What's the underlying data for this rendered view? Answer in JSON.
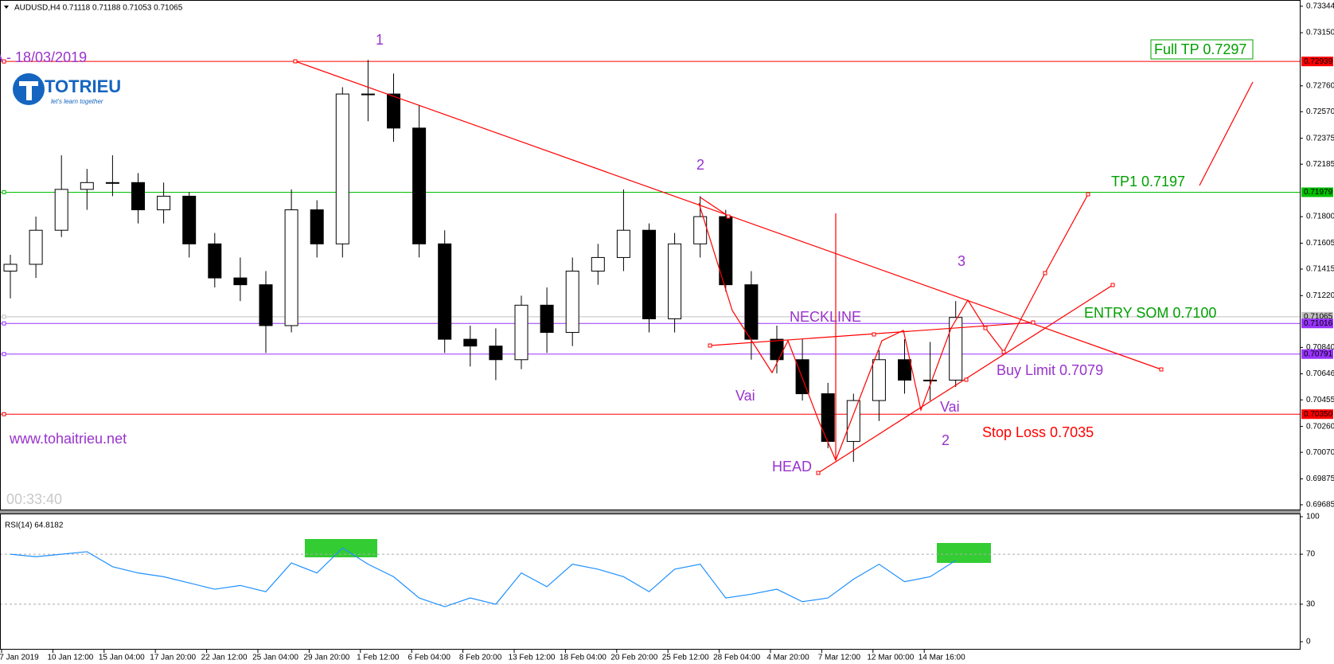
{
  "chart_data": [
    {
      "type": "candlestick",
      "title": "AUDUSD,H4 0.71118 0.71188 0.71053 0.71065",
      "xtick_labels": [
        "7 Jan 2019",
        "10 Jan 12:00",
        "15 Jan 04:00",
        "17 Jan 20:00",
        "22 Jan 12:00",
        "25 Jan 04:00",
        "29 Jan 20:00",
        "1 Feb 12:00",
        "6 Feb 04:00",
        "8 Feb 20:00",
        "13 Feb 12:00",
        "18 Feb 04:00",
        "20 Feb 20:00",
        "25 Feb 12:00",
        "28 Feb 04:00",
        "4 Mar 20:00",
        "7 Mar 12:00",
        "12 Mar 00:00",
        "14 Mar 16:00"
      ],
      "open": [
        0.714,
        0.7145,
        0.717,
        0.72,
        0.7205,
        0.7205,
        0.7185,
        0.7195,
        0.716,
        0.7135,
        0.713,
        0.71,
        0.7185,
        0.716,
        0.727,
        0.727,
        0.7245,
        0.716,
        0.709,
        0.7085,
        0.7075,
        0.7115,
        0.7095,
        0.714,
        0.715,
        0.717,
        0.7105,
        0.716,
        0.718,
        0.713,
        0.709,
        0.7075,
        0.705,
        0.7015,
        0.7045,
        0.7075,
        0.706,
        0.706
      ],
      "high": [
        0.7152,
        0.718,
        0.7225,
        0.7215,
        0.7225,
        0.7212,
        0.7205,
        0.7198,
        0.7168,
        0.715,
        0.714,
        0.72,
        0.7192,
        0.7275,
        0.7295,
        0.7285,
        0.7262,
        0.717,
        0.71,
        0.7098,
        0.7122,
        0.7128,
        0.715,
        0.716,
        0.72,
        0.7175,
        0.7168,
        0.7195,
        0.7185,
        0.714,
        0.71,
        0.709,
        0.7058,
        0.705,
        0.7082,
        0.709,
        0.7088,
        0.7118
      ],
      "low": [
        0.712,
        0.7135,
        0.7165,
        0.7185,
        0.7195,
        0.7175,
        0.7175,
        0.715,
        0.7128,
        0.7118,
        0.708,
        0.7095,
        0.715,
        0.715,
        0.725,
        0.7235,
        0.715,
        0.708,
        0.707,
        0.706,
        0.7068,
        0.708,
        0.7085,
        0.713,
        0.714,
        0.7095,
        0.7095,
        0.715,
        0.7125,
        0.7075,
        0.7065,
        0.7045,
        0.701,
        0.7,
        0.703,
        0.705,
        0.7045,
        0.7055
      ],
      "close": [
        0.7145,
        0.717,
        0.72,
        0.7205,
        0.7205,
        0.7185,
        0.7195,
        0.716,
        0.7135,
        0.713,
        0.71,
        0.7185,
        0.716,
        0.727,
        0.727,
        0.7245,
        0.716,
        0.709,
        0.7085,
        0.7075,
        0.7115,
        0.7095,
        0.714,
        0.715,
        0.717,
        0.7105,
        0.716,
        0.718,
        0.713,
        0.709,
        0.7075,
        0.705,
        0.7015,
        0.7045,
        0.7075,
        0.706,
        0.706,
        0.7106
      ],
      "ylim": [
        0.6965,
        0.7339
      ],
      "yticks": [
        0.73344,
        {
          "value": 0.7315,
          "label": "0.73150"
        },
        {
          "value": 0.7276,
          "label": "0.72760"
        },
        {
          "value": 0.7257,
          "label": "0.72570"
        },
        0.72375,
        0.72185,
        {
          "value": 0.718,
          "label": "0.71800"
        },
        0.71605,
        0.71415,
        {
          "value": 0.7122,
          "label": "0.71220"
        },
        {
          "value": 0.7084,
          "label": "0.70840"
        },
        0.70646,
        0.70455,
        {
          "value": 0.7026,
          "label": "0.70260"
        },
        {
          "value": 0.7007,
          "label": "0.70070"
        },
        0.69875,
        0.69685
      ],
      "levels": [
        {
          "value": 0.72939,
          "label": "0.72939",
          "color": "#ff0000"
        },
        {
          "value": 0.71979,
          "label": "0.71979",
          "color": "#00c000"
        },
        {
          "value": 0.71065,
          "label": "0.71065",
          "color": "#c0c0c0"
        },
        {
          "value": 0.71016,
          "label": "0.71016",
          "color": "#9933ff"
        },
        {
          "value": 0.70791,
          "label": "0.70791",
          "color": "#9933ff"
        },
        {
          "value": 0.7035,
          "label": "0.70350",
          "color": "#ff0000"
        }
      ],
      "annotations": {
        "wave_1": "1",
        "wave_2": "2",
        "wave_3": "3",
        "wave_2b": "2",
        "date": "A - 18/03/2019",
        "brand": "TOTRIEU",
        "slogan": "let's learn together",
        "full_tp": "Full TP 0.7297",
        "tp1": "TP1 0.7197",
        "neckline": "NECKLINE",
        "entry": "ENTRY SOM 0.7100",
        "buy_limit": "Buy Limit 0.7079",
        "left_shoulder": "Vai",
        "right_shoulder": "Vai",
        "head": "HEAD",
        "stop_loss": "Stop Loss 0.7035",
        "website": "www.tohaitrieu.net",
        "timer": "00:33:40"
      }
    },
    {
      "type": "line",
      "title": "RSI(14) 64.8182",
      "color": "#1e90ff",
      "values": [
        70,
        68,
        70,
        72,
        60,
        55,
        52,
        47,
        42,
        45,
        40,
        63,
        55,
        75,
        62,
        52,
        35,
        28,
        35,
        30,
        55,
        44,
        62,
        58,
        52,
        40,
        58,
        62,
        35,
        38,
        42,
        32,
        35,
        50,
        62,
        48,
        52,
        65
      ],
      "ylim": [
        0,
        100
      ],
      "yticks": [
        0,
        30,
        70,
        100
      ],
      "dashed": [
        30,
        70
      ]
    }
  ]
}
